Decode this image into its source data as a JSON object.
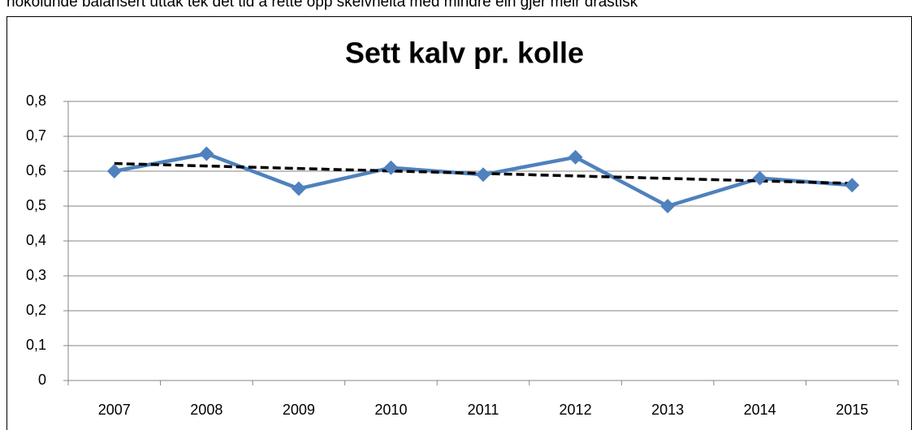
{
  "document_text": "nokolunde balansert uttak tek det tid å rette opp skeivheita med mindre ein gjer meir drastisk",
  "chart_data": {
    "type": "line",
    "title": "Sett kalv pr. kolle",
    "categories": [
      "2007",
      "2008",
      "2009",
      "2010",
      "2011",
      "2012",
      "2013",
      "2014",
      "2015"
    ],
    "series": [
      {
        "color": "#4f81bd",
        "values": [
          0.6,
          0.65,
          0.55,
          0.61,
          0.59,
          0.64,
          0.5,
          0.58,
          0.56
        ]
      }
    ],
    "trendline": {
      "color": "#000000",
      "values": [
        0.622,
        0.565
      ]
    },
    "ylim": [
      0,
      0.8
    ],
    "yticks": [
      0,
      {
        "value": 0.1,
        "label": "0,1"
      },
      {
        "value": 0.2,
        "label": "0,2"
      },
      {
        "value": 0.3,
        "label": "0,3"
      },
      {
        "value": 0.4,
        "label": "0,4"
      },
      {
        "value": 0.5,
        "label": "0,5"
      },
      {
        "value": 0.6,
        "label": "0,6"
      },
      {
        "value": 0.7,
        "label": "0,7"
      },
      {
        "value": 0.8,
        "label": "0,8"
      }
    ],
    "grid": true
  }
}
